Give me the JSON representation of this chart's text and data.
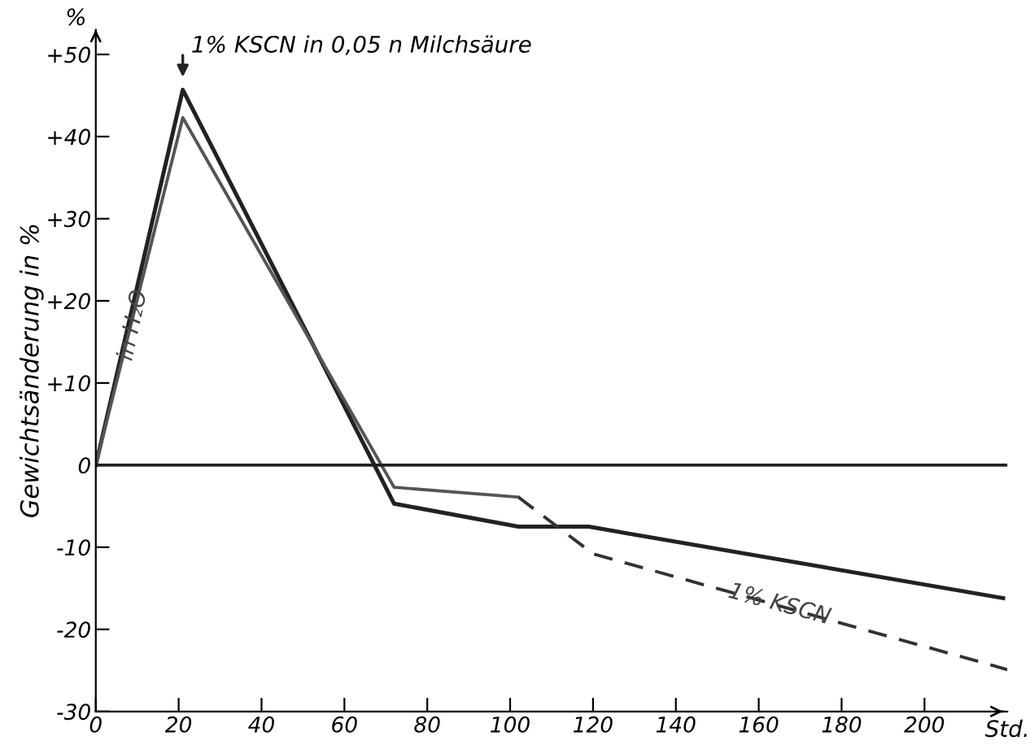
{
  "chart_data": {
    "type": "line",
    "ylabel": "Gewichtsänderung in %",
    "xlabel": "Std.",
    "series": [
      {
        "color": "#222222",
        "x": [
          0,
          21,
          72,
          102,
          119,
          219
        ],
        "values": [
          0,
          45.7,
          -4.7,
          -7.5,
          -7.5,
          -16.2
        ],
        "line_style": "solid"
      },
      {
        "color": "#555555",
        "x": [
          0,
          21,
          72,
          102
        ],
        "values": [
          0,
          42.3,
          -2.7,
          -3.9
        ],
        "line_style": "solid"
      },
      {
        "color": "#333333",
        "x": [
          102,
          120,
          220
        ],
        "values": [
          -3.9,
          -10.8,
          -24.9
        ],
        "line_style": "dashed"
      }
    ],
    "xlim": [
      0,
      220
    ],
    "xticks": [
      0,
      20,
      40,
      60,
      80,
      100,
      120,
      140,
      160,
      180,
      200
    ],
    "ylim": [
      -30,
      53
    ],
    "yticks": [
      {
        "value": 50,
        "label": "+50"
      },
      {
        "value": 40,
        "label": "+40"
      },
      {
        "value": 30,
        "label": "+30"
      },
      {
        "value": 20,
        "label": "+20"
      },
      {
        "value": 10,
        "label": "+10"
      },
      0,
      -10,
      -20,
      -30
    ],
    "ref_lines": [
      {
        "axis": "y",
        "value": 0
      }
    ],
    "annotations": [
      "1% KSCN in 0,05 n Milchsäure",
      {
        "text": "in H₂O",
        "x": 9,
        "y": 17
      },
      {
        "text": "1% KSCN",
        "x": 165,
        "y": -17
      },
      "%"
    ],
    "grid": false,
    "marker": "none"
  }
}
